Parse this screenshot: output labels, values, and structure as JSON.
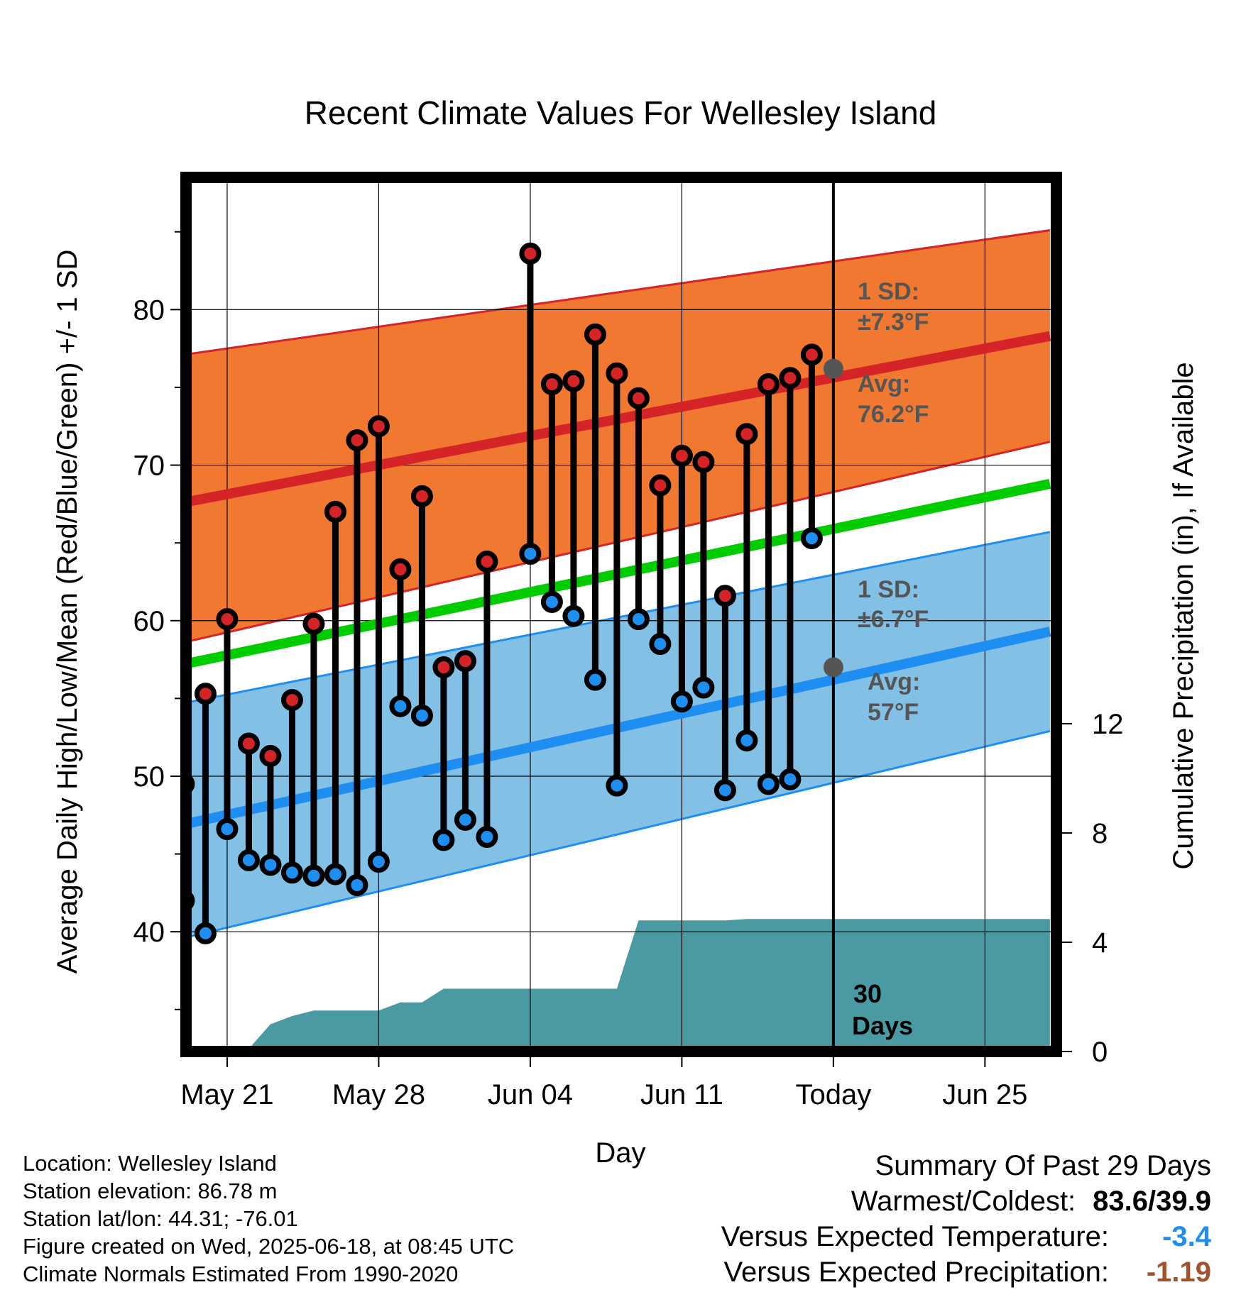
{
  "chart_data": {
    "type": "line",
    "title": "Recent Climate Values For Wellesley Island",
    "xlabel": "Day",
    "ylabel": "Average Daily High/Low/Mean (Red/Blue/Green) +/- 1 SD",
    "y2label": "Cumulative Precipitation (in), If Available",
    "x_range_days": [
      -29.9,
      10.3
    ],
    "ylim": [
      32.3,
      88.5
    ],
    "y2lim": [
      0,
      32
    ],
    "yticks": [
      40,
      50,
      60,
      70,
      80
    ],
    "y2ticks": [
      0,
      4,
      8,
      12
    ],
    "xticks": [
      {
        "day": -28,
        "label": "May 21"
      },
      {
        "day": -21,
        "label": "May 28"
      },
      {
        "day": -14,
        "label": "Jun 04"
      },
      {
        "day": -7,
        "label": "Jun 11"
      },
      {
        "day": 0,
        "label": "Today"
      },
      {
        "day": 7,
        "label": "Jun 25"
      }
    ],
    "grid": true,
    "today_line_day": 0,
    "daily": {
      "days": [
        -30,
        -29,
        -28,
        -27,
        -26,
        -25,
        -24,
        -23,
        -22,
        -21,
        -20,
        -19,
        -18,
        -17,
        -16,
        -15,
        -14,
        -13,
        -12,
        -11,
        -10,
        -9,
        -8,
        -7,
        -6,
        -5,
        -4,
        -3,
        -2,
        -1
      ],
      "high": [
        49.5,
        55.3,
        60.1,
        52.1,
        51.3,
        54.9,
        59.8,
        67.0,
        71.6,
        72.5,
        63.3,
        68.0,
        57.0,
        57.4,
        63.8,
        null,
        83.6,
        75.2,
        75.4,
        78.4,
        75.9,
        74.3,
        68.7,
        70.6,
        70.2,
        61.6,
        72.0,
        75.2,
        75.6,
        77.1
      ],
      "low": [
        42.0,
        39.9,
        46.6,
        44.6,
        44.3,
        43.8,
        43.6,
        43.7,
        43.0,
        44.5,
        54.5,
        53.9,
        45.9,
        47.2,
        46.1,
        null,
        64.3,
        61.2,
        60.3,
        56.2,
        49.4,
        60.1,
        58.5,
        54.8,
        55.7,
        49.1,
        52.3,
        49.5,
        49.8,
        65.3
      ],
      "high_color": "#d42427",
      "low_color": "#1e8ff0"
    },
    "normals": {
      "days": [
        -30,
        10
      ],
      "avg_high": [
        67.6,
        78.3
      ],
      "avg_high_sd_upper": [
        77.1,
        85.1
      ],
      "avg_high_sd_lower": [
        58.6,
        71.5
      ],
      "avg_low": [
        46.9,
        59.3
      ],
      "avg_low_sd_upper": [
        54.7,
        65.7
      ],
      "avg_low_sd_lower": [
        39.6,
        52.9
      ],
      "avg_mean": [
        57.2,
        68.8
      ],
      "today_high_avg": 76.2,
      "today_low_avg": 57.0,
      "high_sd": 7.3,
      "low_sd": 6.7
    },
    "precipitation": {
      "days": [
        -30,
        -29,
        -28,
        -27,
        -26,
        -25,
        -24,
        -23,
        -22,
        -21,
        -20,
        -19,
        -18,
        -17,
        -16,
        -15,
        -14,
        -13,
        -12,
        -11,
        -10,
        -9,
        -8,
        -7,
        -6,
        -5,
        -4,
        -3,
        -2,
        -1,
        0,
        10
      ],
      "cumulative": [
        0,
        0,
        0,
        0.1,
        1.0,
        1.3,
        1.5,
        1.5,
        1.5,
        1.5,
        1.8,
        1.8,
        2.3,
        2.3,
        2.3,
        2.3,
        2.3,
        2.3,
        2.3,
        2.3,
        2.3,
        4.8,
        4.8,
        4.8,
        4.8,
        4.8,
        4.85,
        4.85,
        4.85,
        4.85,
        4.85,
        4.85
      ],
      "color": "#4a9aa3"
    },
    "colors": {
      "high_band": "#f07830",
      "high_line": "#d42427",
      "low_band": "#82c0e6",
      "low_line": "#1e8ff0",
      "mean_line": "#00cc00",
      "annotation": "#555555"
    },
    "annotations": {
      "high_sd_label": "1 SD:",
      "high_sd_value": "±7.3°F",
      "high_avg_label": "Avg:",
      "high_avg_value": "76.2°F",
      "low_sd_label": "1 SD:",
      "low_sd_value": "±6.7°F",
      "low_avg_label": "Avg:",
      "low_avg_value": "57°F",
      "days_num": "30",
      "days_word": "Days"
    }
  },
  "info": {
    "location": "Location: Wellesley Island",
    "elevation": "Station elevation: 86.78 m",
    "latlon": "Station lat/lon: 44.31; -76.01",
    "created": "Figure created on Wed, 2025-06-18, at 08:45 UTC",
    "normals": "Climate Normals Estimated From 1990-2020"
  },
  "summary": {
    "heading": "Summary Of Past 29 Days",
    "warmest_label": "Warmest/Coldest:",
    "warmest_value": "83.6/39.9",
    "temp_label": "Versus Expected Temperature:",
    "temp_value": "-3.4",
    "temp_color": "#1e8ff0",
    "precip_label": "Versus Expected Precipitation:",
    "precip_value": "-1.19",
    "precip_color": "#a0522d"
  }
}
